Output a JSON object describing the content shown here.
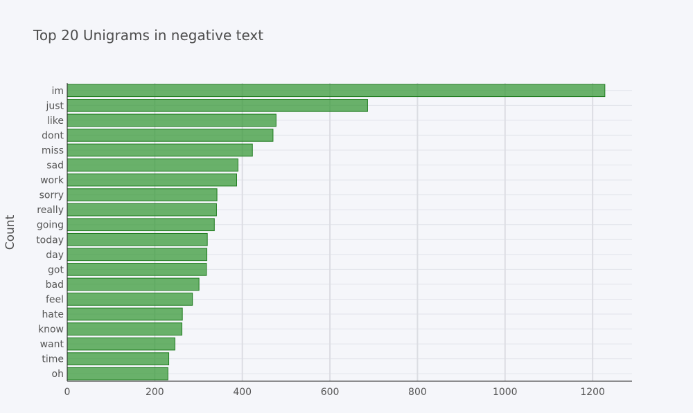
{
  "chart_data": {
    "type": "bar",
    "orientation": "horizontal",
    "title": "Top 20 Unigrams in negative text",
    "ylabel": "Count",
    "xlabel": "",
    "categories": [
      "im",
      "just",
      "like",
      "dont",
      "miss",
      "sad",
      "work",
      "sorry",
      "really",
      "going",
      "today",
      "day",
      "got",
      "bad",
      "feel",
      "hate",
      "know",
      "want",
      "time",
      "oh"
    ],
    "values": [
      1228,
      686,
      477,
      470,
      423,
      390,
      387,
      342,
      341,
      336,
      320,
      319,
      318,
      301,
      286,
      263,
      262,
      246,
      232,
      230
    ],
    "xlim": [
      0,
      1290
    ],
    "xticks": [
      0,
      200,
      400,
      600,
      800,
      1000,
      1200
    ],
    "grid": true,
    "colors": {
      "bar_fill": "#3a9a3a",
      "bar_opacity": 0.75,
      "bar_stroke": "#1e7a1e",
      "background": "#f5f6fa"
    }
  }
}
